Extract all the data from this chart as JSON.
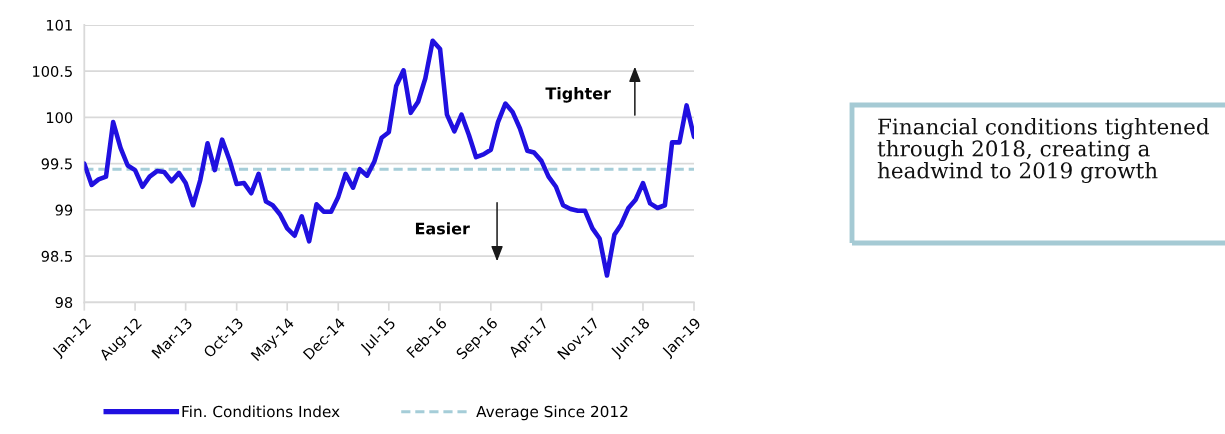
{
  "chart_data": {
    "type": "line",
    "x": [
      "2012-01",
      "2012-02",
      "2012-03",
      "2012-04",
      "2012-05",
      "2012-06",
      "2012-07",
      "2012-08",
      "2012-09",
      "2012-10",
      "2012-11",
      "2012-12",
      "2013-01",
      "2013-02",
      "2013-03",
      "2013-04",
      "2013-05",
      "2013-06",
      "2013-07",
      "2013-08",
      "2013-09",
      "2013-10",
      "2013-11",
      "2013-12",
      "2014-01",
      "2014-02",
      "2014-03",
      "2014-04",
      "2014-05",
      "2014-06",
      "2014-07",
      "2014-08",
      "2014-09",
      "2014-10",
      "2014-11",
      "2014-12",
      "2015-01",
      "2015-02",
      "2015-03",
      "2015-04",
      "2015-05",
      "2015-06",
      "2015-07",
      "2015-08",
      "2015-09",
      "2015-10",
      "2015-11",
      "2015-12",
      "2016-01",
      "2016-02",
      "2016-03",
      "2016-04",
      "2016-05",
      "2016-06",
      "2016-07",
      "2016-08",
      "2016-09",
      "2016-10",
      "2016-11",
      "2016-12",
      "2017-01",
      "2017-02",
      "2017-03",
      "2017-04",
      "2017-05",
      "2017-06",
      "2017-07",
      "2017-08",
      "2017-09",
      "2017-10",
      "2017-11",
      "2017-12",
      "2018-01",
      "2018-02",
      "2018-03",
      "2018-04",
      "2018-05",
      "2018-06",
      "2018-07",
      "2018-08",
      "2018-09",
      "2018-10",
      "2018-11",
      "2018-12",
      "2019-01"
    ],
    "series": [
      {
        "name": "Fin. Conditions Index",
        "color": "#2010e0",
        "values": [
          99.5,
          99.27,
          99.33,
          99.36,
          99.95,
          99.67,
          99.48,
          99.43,
          99.25,
          99.36,
          99.42,
          99.41,
          99.31,
          99.4,
          99.29,
          99.05,
          99.32,
          99.72,
          99.43,
          99.76,
          99.54,
          99.28,
          99.29,
          99.18,
          99.39,
          99.09,
          99.05,
          98.95,
          98.8,
          98.72,
          98.93,
          98.66,
          99.06,
          98.98,
          98.98,
          99.14,
          99.39,
          99.24,
          99.44,
          99.37,
          99.52,
          99.78,
          99.84,
          100.34,
          100.51,
          100.05,
          100.17,
          100.42,
          100.83,
          100.74,
          100.03,
          99.85,
          100.03,
          99.81,
          99.57,
          99.6,
          99.65,
          99.95,
          100.15,
          100.06,
          99.88,
          99.64,
          99.62,
          99.53,
          99.36,
          99.25,
          99.05,
          99.01,
          98.99,
          98.99,
          98.8,
          98.69,
          98.29,
          98.73,
          98.84,
          99.02,
          99.11,
          99.29,
          99.07,
          99.02,
          99.05,
          99.73,
          99.73,
          100.13,
          99.79
        ]
      }
    ],
    "xlim": [
      "2012-01",
      "2019-01"
    ],
    "xticks": [
      {
        "value": "2012-01",
        "label": "Jan-12"
      },
      {
        "value": "2012-08",
        "label": "Aug-12"
      },
      {
        "value": "2013-03",
        "label": "Mar-13"
      },
      {
        "value": "2013-10",
        "label": "Oct-13"
      },
      {
        "value": "2014-05",
        "label": "May-14"
      },
      {
        "value": "2014-12",
        "label": "Dec-14"
      },
      {
        "value": "2015-07",
        "label": "Jul-15"
      },
      {
        "value": "2016-02",
        "label": "Feb-16"
      },
      {
        "value": "2016-09",
        "label": "Sep-16"
      },
      {
        "value": "2017-04",
        "label": "Apr-17"
      },
      {
        "value": "2017-11",
        "label": "Nov-17"
      },
      {
        "value": "2018-06",
        "label": "Jun-18"
      },
      {
        "value": "2019-01",
        "label": "Jan-19"
      }
    ],
    "ylim": [
      98,
      101
    ],
    "yticks": [
      98,
      98.5,
      99,
      99.5,
      100,
      100.5,
      101
    ],
    "ref_lines": [
      {
        "axis": "y",
        "value": 99.44,
        "label": "Average Since 2012",
        "color": "#a5cdd8",
        "line_style": "dashed"
      }
    ],
    "annotations": [
      "Tighter",
      "Easier",
      "Financial conditions tightened through 2018, creating a headwind to 2019 growth"
    ],
    "grid": "y",
    "legend": "bottom",
    "line_style": "solid"
  }
}
